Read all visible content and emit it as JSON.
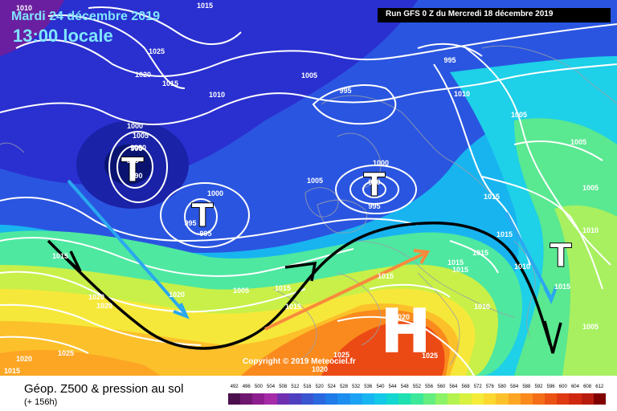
{
  "header": {
    "date": "Mardi 24 décembre 2019",
    "local_time": "13:00 locale",
    "run": "Run GFS 0 Z du Mercredi 18 décembre 2019"
  },
  "copyright": "Copyright © 2019 Meteociel.fr",
  "legend": {
    "title": "Géop. Z500 & pression au sol",
    "lead": "(+ 156h)",
    "scale_values": [
      "492",
      "496",
      "500",
      "504",
      "508",
      "512",
      "516",
      "520",
      "524",
      "528",
      "532",
      "536",
      "540",
      "544",
      "548",
      "552",
      "556",
      "560",
      "564",
      "568",
      "572",
      "576",
      "580",
      "584",
      "588",
      "592",
      "596",
      "600",
      "604",
      "608",
      "612"
    ],
    "scale_colors": [
      "#4b0f4b",
      "#6e1670",
      "#8c1e8f",
      "#a52ba8",
      "#6f2fb0",
      "#4f3fc0",
      "#3a55d0",
      "#2a68e0",
      "#1f7be8",
      "#1c8ef0",
      "#1aa2f4",
      "#17b6f2",
      "#14c8e8",
      "#12d6d0",
      "#1ee0b0",
      "#3ce89a",
      "#64ee80",
      "#8cf266",
      "#b4f250",
      "#d8f040",
      "#f4ec38",
      "#fcd830",
      "#fcc02a",
      "#fca624",
      "#fa8a1e",
      "#f46e18",
      "#ec5214",
      "#e03a12",
      "#d02810",
      "#b81c0e",
      "#800000"
    ]
  },
  "pressure_labels": [
    "1010",
    "1015",
    "1025",
    "1020",
    "1015",
    "1010",
    "1005",
    "995",
    "995",
    "1005",
    "1000",
    "1005",
    "995",
    "1000",
    "995",
    "990",
    "1000",
    "995",
    "995",
    "1005",
    "1000",
    "990",
    "995",
    "1015",
    "1015",
    "1015",
    "1015",
    "1015",
    "1015",
    "1005",
    "1015",
    "1020",
    "1020",
    "1025",
    "1020",
    "1015",
    "1020",
    "1025",
    "1025",
    "1020",
    "1010",
    "1005",
    "1010",
    "1005",
    "1015",
    "1015",
    "1010",
    "1005",
    "1015",
    "1010",
    "1020"
  ],
  "pressure_centres": [
    {
      "symbol": "T",
      "kind": "low"
    },
    {
      "symbol": "T",
      "kind": "low"
    },
    {
      "symbol": "T",
      "kind": "low"
    },
    {
      "symbol": "T",
      "kind": "low"
    },
    {
      "symbol": "H",
      "kind": "high"
    }
  ],
  "colors": {
    "low_core": "#0a1f8a",
    "deep_blue": "#2a2fd0",
    "mid_blue": "#1a8ff0",
    "cyan": "#22d0f0",
    "green": "#66ee77",
    "yellow": "#f2ec3a",
    "orange": "#fca024",
    "red": "#e8381a",
    "isobar": "#ffffff",
    "jet": "#000000"
  }
}
